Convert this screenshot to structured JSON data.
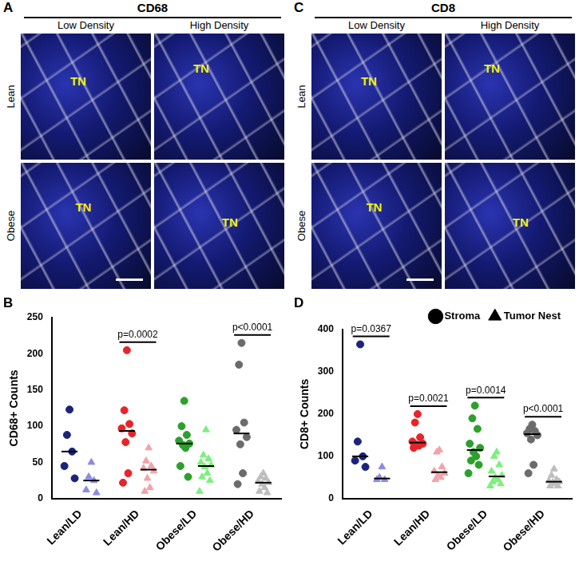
{
  "image_panels": [
    {
      "letter": "A",
      "title": "CD68",
      "columns": [
        "Low Density",
        "High Density"
      ],
      "rows": [
        "Lean",
        "Obese"
      ],
      "tile_label": "TN"
    },
    {
      "letter": "C",
      "title": "CD8",
      "columns": [
        "Low Density",
        "High Density"
      ],
      "rows": [
        "Lean",
        "Obese"
      ],
      "tile_label": "TN"
    }
  ],
  "chart_data": [
    {
      "panel": "B",
      "type": "scatter",
      "y_label": "CD68+ Counts",
      "categories": [
        "Lean/LD",
        "Lean/HD",
        "Obese/LD",
        "Obese/HD"
      ],
      "ylim": [
        0,
        250
      ],
      "yticks": [
        0,
        50,
        100,
        150,
        200,
        250
      ],
      "grid": false,
      "series": [
        {
          "name": "Stroma",
          "marker": "circle",
          "colors": [
            "#1b237a",
            "#e8232a",
            "#2ca02c",
            "#6b6b6b"
          ],
          "values": [
            [
              123,
              88,
              65,
              45,
              28
            ],
            [
              205,
              122,
              103,
              97,
              90,
              78,
              35,
              22
            ],
            [
              135,
              100,
              88,
              80,
              76,
              74,
              70,
              45,
              30
            ],
            [
              215,
              185,
              105,
              95,
              85,
              75,
              35,
              20
            ]
          ]
        },
        {
          "name": "Tumor Nest",
          "marker": "triangle",
          "colors": [
            "#8b8be6",
            "#f2a2a8",
            "#7cf07c",
            "#bdbdbd"
          ],
          "values": [
            [
              50,
              30,
              25,
              12,
              8
            ],
            [
              70,
              52,
              45,
              42,
              38,
              28,
              15,
              10
            ],
            [
              95,
              60,
              55,
              50,
              46,
              44,
              35,
              30,
              25,
              10
            ],
            [
              35,
              30,
              28,
              24,
              22,
              20,
              15,
              10,
              8
            ]
          ]
        }
      ],
      "annotations": [
        {
          "category": "Lean/HD",
          "text": "p=0.0002"
        },
        {
          "category": "Obese/HD",
          "text": "p<0.0001"
        }
      ]
    },
    {
      "panel": "D",
      "type": "scatter",
      "y_label": "CD8+ Counts",
      "categories": [
        "Lean/LD",
        "Lean/HD",
        "Obese/LD",
        "Obese/HD"
      ],
      "ylim": [
        0,
        400
      ],
      "yticks": [
        0,
        100,
        200,
        300,
        400
      ],
      "grid": false,
      "legend": "top right",
      "series": [
        {
          "name": "Stroma",
          "marker": "circle",
          "colors": [
            "#1b237a",
            "#e8232a",
            "#2ca02c",
            "#6b6b6b"
          ],
          "values": [
            [
              365,
              135,
              100,
              90,
              75
            ],
            [
              200,
              180,
              145,
              135,
              130,
              128,
              125,
              120
            ],
            [
              220,
              190,
              165,
              130,
              120,
              110,
              100,
              90,
              80,
              60
            ],
            [
              175,
              165,
              160,
              155,
              150,
              140,
              80,
              60
            ]
          ]
        },
        {
          "name": "Tumor Nest",
          "marker": "triangle",
          "colors": [
            "#8b8be6",
            "#f2a2a8",
            "#7cf07c",
            "#bdbdbd"
          ],
          "values": [
            [
              75,
              50,
              45,
              45
            ],
            [
              115,
              110,
              75,
              65,
              60,
              55,
              50,
              45
            ],
            [
              110,
              100,
              80,
              65,
              55,
              50,
              45,
              40,
              35,
              30
            ],
            [
              70,
              55,
              45,
              42,
              40,
              38,
              35,
              30,
              30
            ]
          ]
        }
      ],
      "annotations": [
        {
          "category": "Lean/LD",
          "text": "p=0.0367"
        },
        {
          "category": "Lean/HD",
          "text": "p=0.0021"
        },
        {
          "category": "Obese/LD",
          "text": "p=0.0014"
        },
        {
          "category": "Obese/HD",
          "text": "p<0.0001"
        }
      ]
    }
  ]
}
